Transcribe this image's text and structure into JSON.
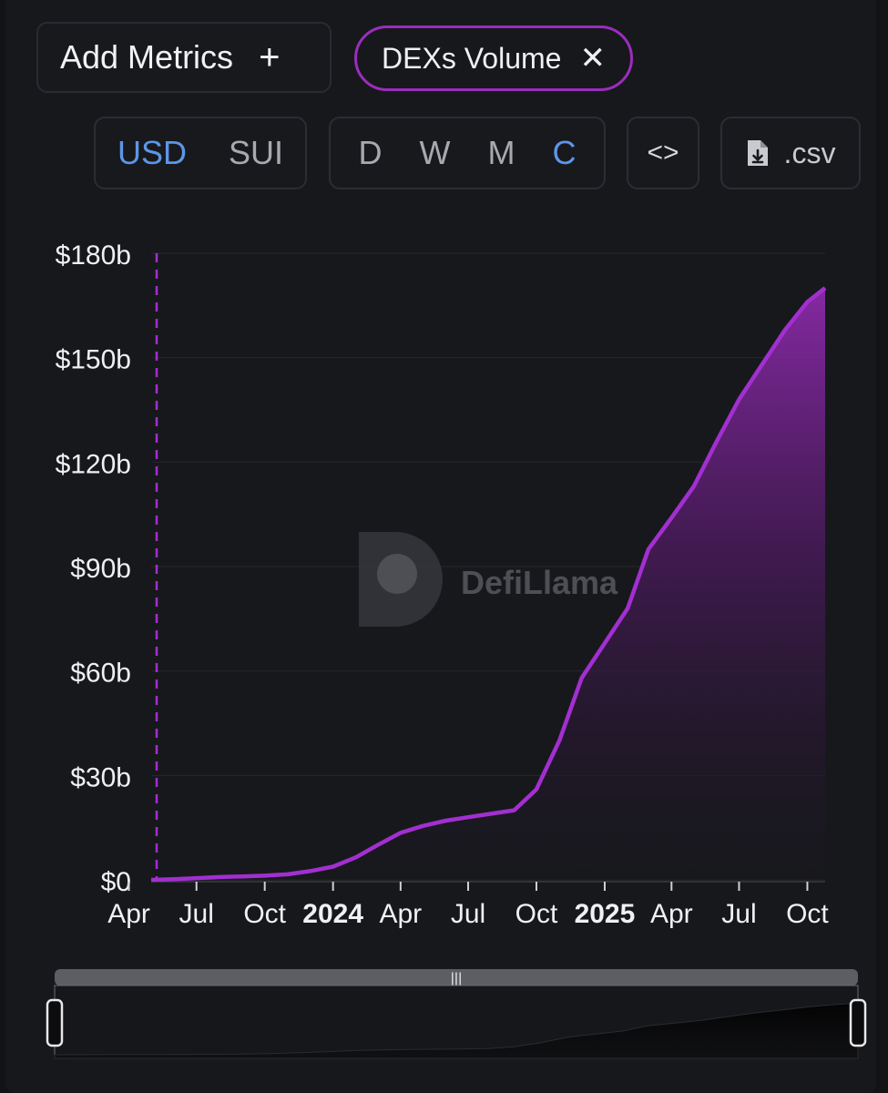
{
  "toolbar": {
    "add_metrics_label": "Add Metrics",
    "add_icon": "plus-icon",
    "metric_chip_label": "DEXs Volume",
    "chip_close_icon": "close-icon",
    "currency_options": [
      "USD",
      "SUI"
    ],
    "currency_selected": "USD",
    "period_options": [
      "D",
      "W",
      "M",
      "C"
    ],
    "period_selected": "C",
    "embed_icon": "code-brackets-icon",
    "csv_icon": "file-download-icon",
    "csv_label": ".csv"
  },
  "watermark": "DefiLlama",
  "colors": {
    "accent": "#a22fd0",
    "active_toggle": "#5c96e8",
    "chip_border": "#9b2dbd",
    "background": "#17181c"
  },
  "chart_data": {
    "type": "area",
    "title": "",
    "xlabel": "",
    "ylabel": "",
    "y_unit": "USD, cumulative",
    "ylim": [
      0,
      180
    ],
    "y_tick_values": [
      0,
      30,
      60,
      90,
      120,
      150,
      180
    ],
    "y_tick_labels": [
      "$0",
      "$30b",
      "$60b",
      "$90b",
      "$120b",
      "$150b",
      "$180b"
    ],
    "xlim": [
      "2023-05-01",
      "2025-10-25"
    ],
    "x_ticks": [
      {
        "date": "2023-04-01",
        "label": "Apr",
        "bold": false
      },
      {
        "date": "2023-07-01",
        "label": "Jul",
        "bold": false
      },
      {
        "date": "2023-10-01",
        "label": "Oct",
        "bold": false
      },
      {
        "date": "2024-01-01",
        "label": "2024",
        "bold": true
      },
      {
        "date": "2024-04-01",
        "label": "Apr",
        "bold": false
      },
      {
        "date": "2024-07-01",
        "label": "Jul",
        "bold": false
      },
      {
        "date": "2024-10-01",
        "label": "Oct",
        "bold": false
      },
      {
        "date": "2025-01-01",
        "label": "2025",
        "bold": true
      },
      {
        "date": "2025-04-01",
        "label": "Apr",
        "bold": false
      },
      {
        "date": "2025-07-01",
        "label": "Jul",
        "bold": false
      },
      {
        "date": "2025-10-01",
        "label": "Oct",
        "bold": false
      }
    ],
    "grid": true,
    "legend": "none",
    "series": [
      {
        "x": [
          "2023-05-01",
          "2023-06-01",
          "2023-07-01",
          "2023-08-01",
          "2023-09-01",
          "2023-10-01",
          "2023-11-01",
          "2023-12-01",
          "2024-01-01",
          "2024-02-01",
          "2024-03-01",
          "2024-04-01",
          "2024-05-01",
          "2024-06-01",
          "2024-07-01",
          "2024-08-01",
          "2024-09-01",
          "2024-10-01",
          "2024-11-01",
          "2024-12-01",
          "2025-01-01",
          "2025-02-01",
          "2025-03-01",
          "2025-04-01",
          "2025-05-01",
          "2025-06-01",
          "2025-07-01",
          "2025-08-01",
          "2025-09-01",
          "2025-10-01",
          "2025-10-25"
        ],
        "values": [
          0,
          0.2,
          0.5,
          0.8,
          1.0,
          1.2,
          1.6,
          2.5,
          3.8,
          6.5,
          10,
          13.5,
          15.5,
          17,
          18,
          19,
          20,
          26,
          40,
          58,
          68,
          78,
          95,
          104,
          113,
          126,
          138,
          148,
          158,
          166,
          170
        ]
      }
    ],
    "navigator": {
      "range_start": "2023-05-01",
      "range_end": "2025-10-25"
    }
  }
}
